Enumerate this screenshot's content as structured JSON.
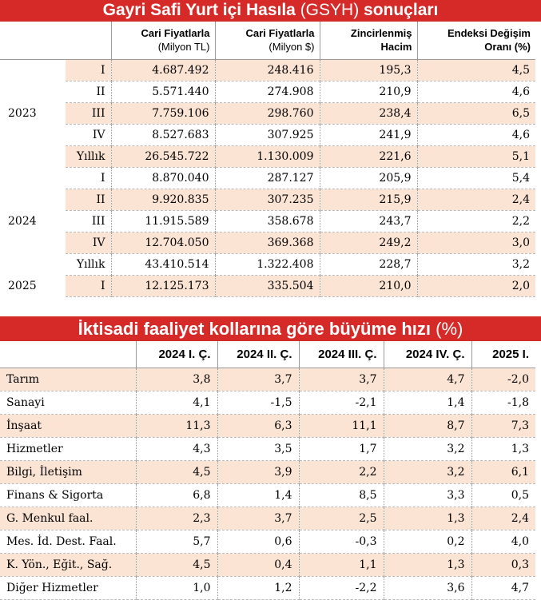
{
  "gsyh": {
    "title_bold_1": "Gayri Safi Yurt içi Hasıla ",
    "title_light": "(GSYH)",
    "title_bold_2": " sonuçları",
    "headers": [
      {
        "main": "Cari Fiyatlarla",
        "sub": "(Milyon TL)"
      },
      {
        "main": "Cari Fiyatlarla",
        "sub": "(Milyon $)"
      },
      {
        "main": "Zincirlenmiş",
        "sub": "Hacim"
      },
      {
        "main": "Endeksi Değişim",
        "sub": "Oranı (%)"
      }
    ],
    "years": [
      "2023",
      "2024",
      "2025"
    ],
    "rows": [
      {
        "period": "I",
        "tl": "4.687.492",
        "usd": "248.416",
        "hacim": "195,3",
        "oran": "4,5"
      },
      {
        "period": "II",
        "tl": "5.571.440",
        "usd": "274.908",
        "hacim": "210,9",
        "oran": "4,6"
      },
      {
        "period": "III",
        "tl": "7.759.106",
        "usd": "298.760",
        "hacim": "238,4",
        "oran": "6,5"
      },
      {
        "period": "IV",
        "tl": "8.527.683",
        "usd": "307.925",
        "hacim": "241,9",
        "oran": "4,6"
      },
      {
        "period": "Yıllık",
        "tl": "26.545.722",
        "usd": "1.130.009",
        "hacim": "221,6",
        "oran": "5,1"
      },
      {
        "period": "I",
        "tl": "8.870.040",
        "usd": "287.127",
        "hacim": "205,9",
        "oran": "5,4"
      },
      {
        "period": "II",
        "tl": "9.920.835",
        "usd": "307.235",
        "hacim": "215,9",
        "oran": "2,4"
      },
      {
        "period": "III",
        "tl": "11.915.589",
        "usd": "358.678",
        "hacim": "243,7",
        "oran": "2,2"
      },
      {
        "period": "IV",
        "tl": "12.704.050",
        "usd": "369.368",
        "hacim": "249,2",
        "oran": "3,0"
      },
      {
        "period": "Yıllık",
        "tl": "43.410.514",
        "usd": "1.322.408",
        "hacim": "228,7",
        "oran": "3,2"
      },
      {
        "period": "I",
        "tl": "12.125.173",
        "usd": "335.504",
        "hacim": "210,0",
        "oran": "2,0"
      }
    ]
  },
  "growth": {
    "title_bold": "İktisadi faaliyet kollarına göre büyüme hızı ",
    "title_light": "(%)",
    "headers": [
      "2024 I. Ç.",
      "2024 II. Ç.",
      "2024 III. Ç.",
      "2024 IV. Ç.",
      "2025 I."
    ],
    "rows": [
      {
        "label": "Tarım",
        "v": [
          "3,8",
          "3,7",
          "3,7",
          "4,7",
          "-2,0"
        ]
      },
      {
        "label": "Sanayi",
        "v": [
          "4,1",
          "-1,5",
          "-2,1",
          "1,4",
          "-1,8"
        ]
      },
      {
        "label": "İnşaat",
        "v": [
          "11,3",
          "6,3",
          "11,1",
          "8,7",
          "7,3"
        ]
      },
      {
        "label": "Hizmetler",
        "v": [
          "4,3",
          "3,5",
          "1,7",
          "3,2",
          "1,3"
        ]
      },
      {
        "label": "Bilgi, İletişim",
        "v": [
          "4,5",
          "3,9",
          "2,2",
          "3,2",
          "6,1"
        ]
      },
      {
        "label": "Finans & Sigorta",
        "v": [
          "6,8",
          "1,4",
          "8,5",
          "3,3",
          "0,5"
        ]
      },
      {
        "label": "G. Menkul faal.",
        "v": [
          "2,3",
          "3,7",
          "2,5",
          "1,3",
          "2,4"
        ]
      },
      {
        "label": "Mes. İd. Dest. Faal.",
        "v": [
          "5,7",
          "0,6",
          "-0,3",
          "0,2",
          "4,0"
        ]
      },
      {
        "label": "K. Yön., Eğit., Sağ.",
        "v": [
          "4,5",
          "0,4",
          "1,1",
          "1,3",
          "0,3"
        ]
      },
      {
        "label": "Diğer Hizmetler",
        "v": [
          "1,0",
          "1,2",
          "-2,2",
          "3,6",
          "4,7"
        ]
      }
    ]
  },
  "colors": {
    "accent_red": "#d62a28",
    "row_tint": "#fbe4d4"
  }
}
